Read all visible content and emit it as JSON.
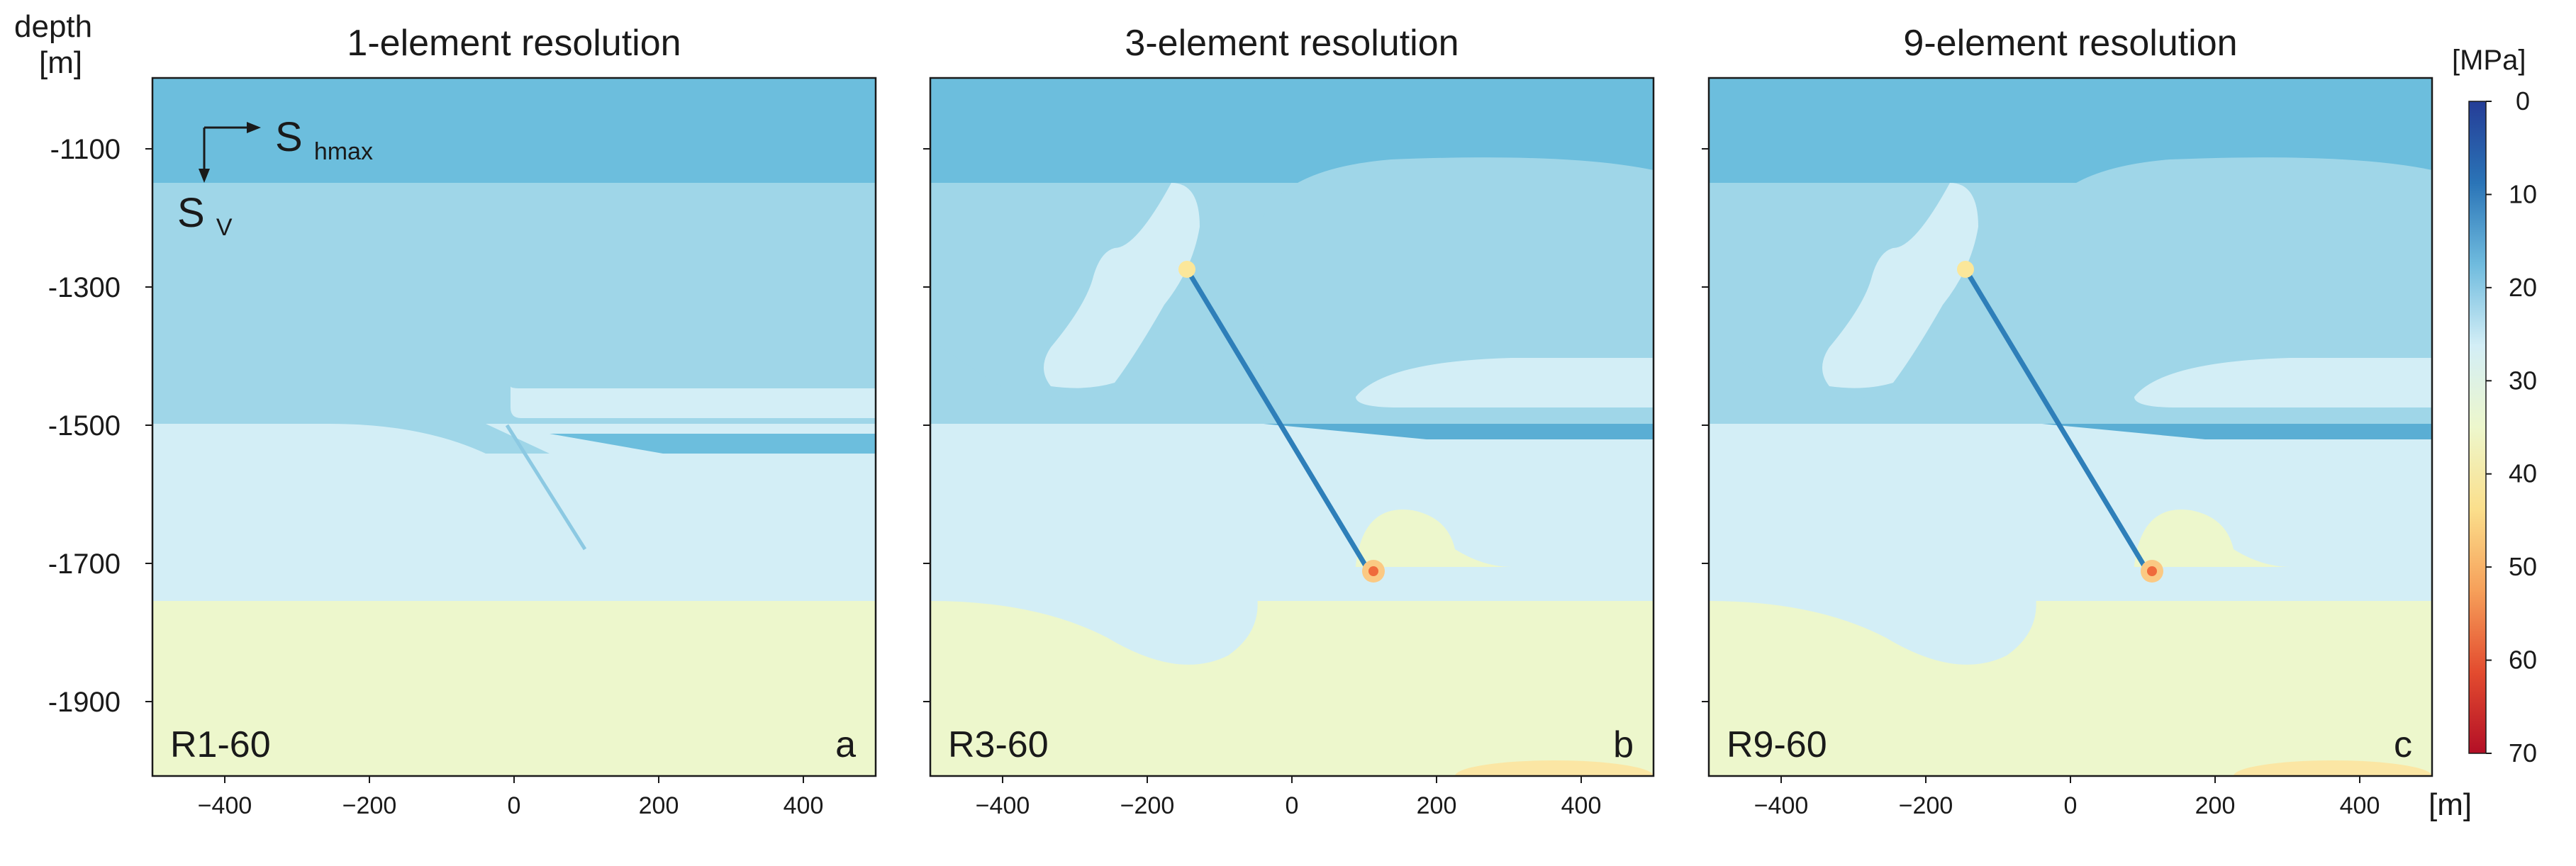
{
  "chart_data": [
    {
      "type": "heatmap",
      "title": "1-element resolution",
      "model_label": "R1-60",
      "panel_letter": "a",
      "xlim": [
        -500,
        500
      ],
      "ylim": [
        -2000,
        -1000
      ],
      "x_ticks": [
        -400,
        -200,
        0,
        200,
        400
      ],
      "y_ticks": [
        -1100,
        -1300,
        -1500,
        -1700,
        -1900
      ],
      "fault": {
        "top": [
          -5,
          -1525
        ],
        "bottom": [
          105,
          -1700
        ],
        "tip_stress": null
      }
    },
    {
      "type": "heatmap",
      "title": "3-element resolution",
      "model_label": "R3-60",
      "panel_letter": "b",
      "xlim": [
        -500,
        500
      ],
      "ylim": [
        -2000,
        -1000
      ],
      "x_ticks": [
        -400,
        -200,
        0,
        200,
        400
      ],
      "y_ticks": [
        -1100,
        -1300,
        -1500,
        -1700,
        -1900
      ],
      "fault": {
        "top": [
          -125,
          -1285
        ],
        "bottom": [
          125,
          -1715
        ],
        "tip_stress": 45
      }
    },
    {
      "type": "heatmap",
      "title": "9-element resolution",
      "model_label": "R9-60",
      "panel_letter": "c",
      "xlim": [
        -500,
        500
      ],
      "ylim": [
        -2000,
        -1000
      ],
      "x_ticks": [
        -400,
        -200,
        0,
        200,
        400
      ],
      "y_ticks": [
        -1100,
        -1300,
        -1500,
        -1700,
        -1900
      ],
      "fault": {
        "top": [
          -125,
          -1285
        ],
        "bottom": [
          125,
          -1715
        ],
        "tip_stress": 50
      }
    }
  ],
  "axes": {
    "y_title_line1": "depth",
    "y_title_line2": "[m]",
    "x_unit": "[m]",
    "y_tick_labels": [
      "-1100",
      "-1300",
      "-1500",
      "-1700",
      "-1900"
    ],
    "x_tick_labels": [
      "−400",
      "−200",
      "0",
      "200",
      "400"
    ]
  },
  "inset": {
    "shmax_base": "S",
    "shmax_sub": "hmax",
    "sv_base": "S",
    "sv_sub": "V"
  },
  "colorbar": {
    "unit": "[MPa]",
    "range": [
      0,
      70
    ],
    "tick_labels": [
      "0",
      "10",
      "20",
      "30",
      "40",
      "50",
      "60",
      "70"
    ],
    "colors": [
      "#253d97",
      "#2a74b7",
      "#6fbbde",
      "#d3eef6",
      "#edf7cc",
      "#fbdf8c",
      "#f6a05a",
      "#e34c2f",
      "#b30f26"
    ]
  },
  "colors": {
    "band_top": "#6cbedd",
    "band_mid": "#9fd6e8",
    "band_lower": "#d3eef6",
    "band_bottom": "#edf7cc",
    "fault": "#2e7fb9",
    "tip_hot": "#ef6a3c"
  }
}
